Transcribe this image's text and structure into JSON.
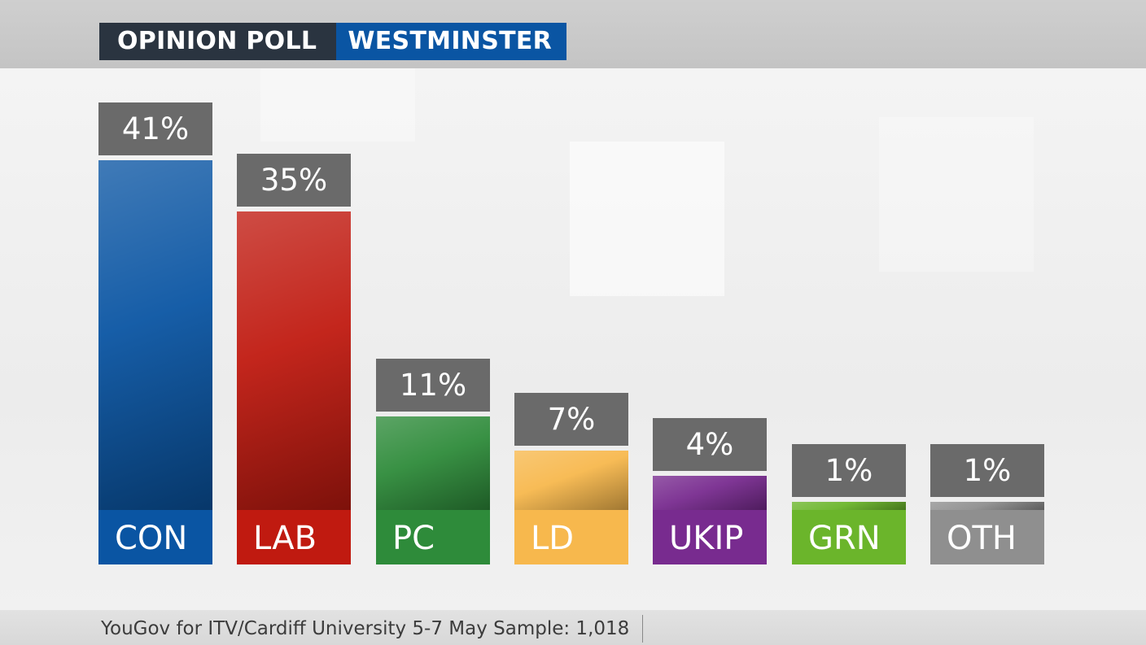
{
  "header": {
    "left": "OPINION POLL",
    "right": "WESTMINSTER"
  },
  "footer": {
    "source": "YouGov for ITV/Cardiff University 5-7 May Sample: 1,018"
  },
  "chart_data": {
    "type": "bar",
    "categories": [
      "CON",
      "LAB",
      "PC",
      "LD",
      "UKIP",
      "GRN",
      "OTH"
    ],
    "values": [
      41,
      35,
      11,
      7,
      4,
      1,
      1
    ],
    "value_labels": [
      "41%",
      "35%",
      "11%",
      "7%",
      "4%",
      "1%",
      "1%"
    ],
    "colors": [
      "#0a55a3",
      "#c01a10",
      "#2e8b3a",
      "#f7b84d",
      "#782b8f",
      "#6bb52b",
      "#8f8f8f"
    ],
    "title": "",
    "xlabel": "",
    "ylabel": "",
    "ylim": [
      0,
      41
    ],
    "grid": false,
    "legend": "none"
  }
}
